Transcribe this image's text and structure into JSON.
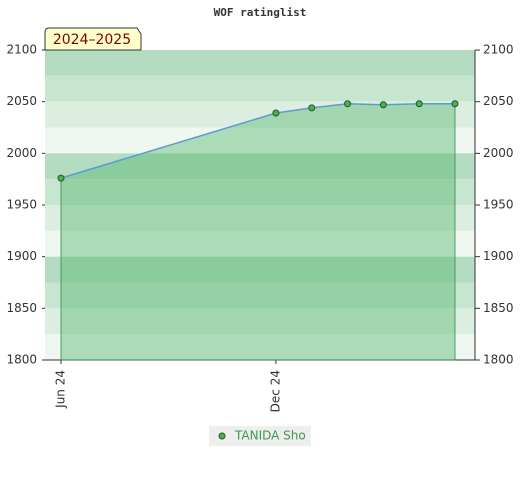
{
  "chart_data": {
    "type": "area",
    "title": "WOF ratinglist",
    "badge": "2024–2025",
    "x": [
      "2024-06",
      "2024-12",
      "2025-01",
      "2025-02",
      "2025-03",
      "2025-04",
      "2025-05"
    ],
    "xlim": [
      "2024-06",
      "2025-05"
    ],
    "xticks": [
      {
        "value": "2024-06",
        "label": "Jun 24"
      },
      {
        "value": "2024-12",
        "label": "Dec 24"
      }
    ],
    "series": [
      {
        "name": "TANIDA Sho",
        "color": "#5b9bd5",
        "values": [
          1976,
          2039,
          2044,
          2048,
          2047,
          2048,
          2048
        ]
      }
    ],
    "ylim": [
      1800,
      2100
    ],
    "yticks": [
      1800,
      1850,
      1900,
      1950,
      2000,
      2050,
      2100
    ],
    "y2lim": [
      1800,
      2100
    ],
    "y2ticks": [
      1800,
      1850,
      1900,
      1950,
      2000,
      2050,
      2100
    ]
  }
}
